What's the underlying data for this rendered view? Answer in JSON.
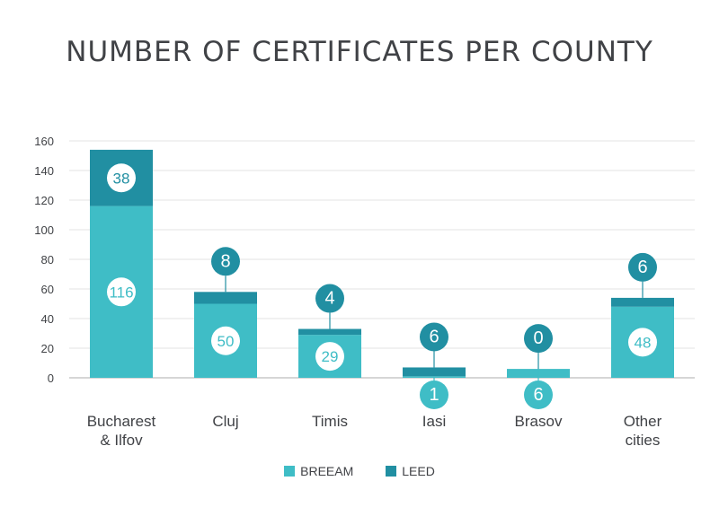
{
  "chart_data": {
    "type": "bar",
    "stacked": true,
    "title": "NUMBER OF CERTIFICATES PER COUNTY",
    "categories": [
      [
        "Bucharest",
        "& Ilfov"
      ],
      [
        "Cluj"
      ],
      [
        "Timis"
      ],
      [
        "Iasi"
      ],
      [
        "Brasov"
      ],
      [
        "Other",
        "cities"
      ]
    ],
    "series": [
      {
        "name": "BREEAM",
        "color": "#3FBDC6",
        "values": [
          116,
          50,
          29,
          1,
          6,
          48
        ]
      },
      {
        "name": "LEED",
        "color": "#218FA2",
        "values": [
          38,
          8,
          4,
          6,
          0,
          6
        ]
      }
    ],
    "ylim": [
      0,
      160
    ],
    "yticks": [
      0,
      20,
      40,
      60,
      80,
      100,
      120,
      140,
      160
    ],
    "xlabel": "",
    "ylabel": "",
    "grid": true,
    "legend_position": "bottom-center"
  }
}
